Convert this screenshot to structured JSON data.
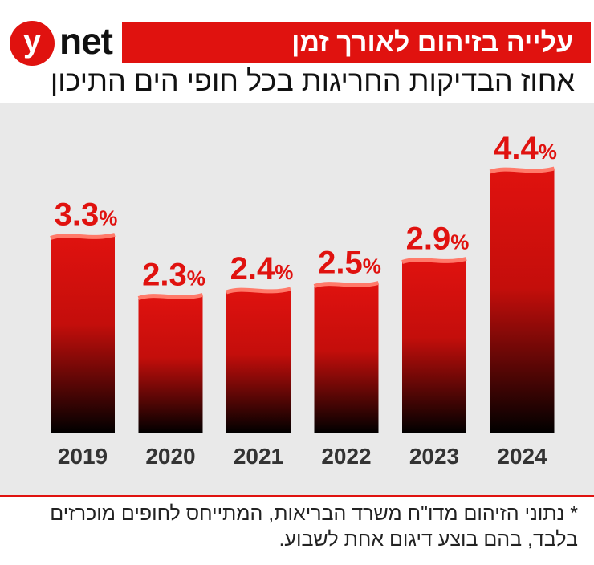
{
  "logo": {
    "letter": "y",
    "word": "net"
  },
  "header": {
    "title": "עלייה בזיהום לאורך זמן",
    "subtitle": "אחוז הבדיקות החריגות בכל חופי הים התיכון"
  },
  "footnote": "* נתוני הזיהום מדו\"ח משרד הבריאות, המתייחס לחופים מוכרזים בלבד, בהם בוצע דיגום אחת לשבוע.",
  "colors": {
    "accent": "#e0120f",
    "bar_top": "#e0120f",
    "bar_bottom": "#000000",
    "plot_bg": "#e9e9e9"
  },
  "chart_data": {
    "type": "bar",
    "categories": [
      "2019",
      "2020",
      "2021",
      "2022",
      "2023",
      "2024"
    ],
    "values": [
      3.3,
      2.3,
      2.4,
      2.5,
      2.9,
      4.4
    ],
    "value_labels": [
      "3.3",
      "2.3",
      "2.4",
      "2.5",
      "2.9",
      "4.4"
    ],
    "unit": "%",
    "ylim": [
      0,
      4.4
    ]
  }
}
